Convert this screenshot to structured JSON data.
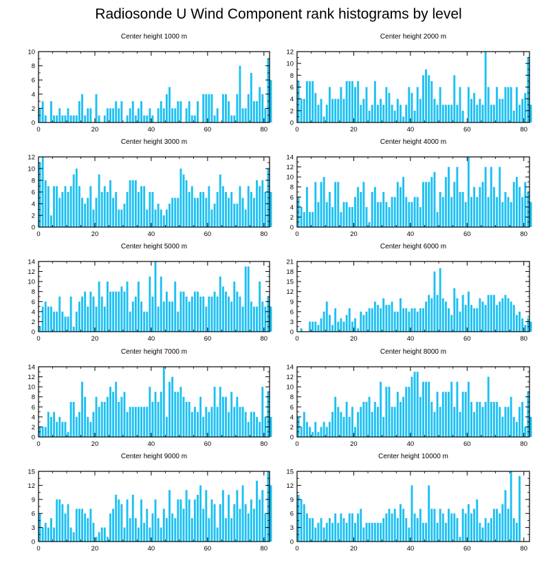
{
  "figure": {
    "title": "Radiosonde U Wind Component rank histograms by level",
    "bar_color": "#1ec0f2",
    "axis_color": "#000000"
  },
  "chart_data": [
    {
      "type": "bar",
      "title": "Center height 1000 m",
      "xlim": [
        0,
        82
      ],
      "ylim": [
        0,
        10
      ],
      "xticks": [
        0,
        20,
        40,
        60,
        80
      ],
      "yticks": [
        0,
        2,
        4,
        6,
        8,
        10
      ],
      "values": [
        2,
        3,
        1,
        0,
        3,
        1,
        1,
        2,
        1,
        1,
        2,
        1,
        1,
        1,
        3,
        4,
        1,
        2,
        2,
        0,
        4,
        1,
        0,
        1,
        2,
        2,
        2,
        3,
        2,
        3,
        0,
        1,
        2,
        3,
        1,
        2,
        3,
        1,
        1,
        2,
        1,
        0,
        2,
        3,
        2,
        4,
        5,
        2,
        2,
        3,
        3,
        0,
        2,
        3,
        1,
        1,
        3,
        0,
        4,
        4,
        4,
        4,
        1,
        2,
        0,
        4,
        4,
        3,
        1,
        1,
        4,
        8,
        2,
        2,
        4,
        7,
        3,
        3,
        5,
        4,
        2,
        9,
        6
      ]
    },
    {
      "type": "bar",
      "title": "Center height 2000 m",
      "xlim": [
        0,
        82
      ],
      "ylim": [
        0,
        12
      ],
      "xticks": [
        0,
        20,
        40,
        60,
        80
      ],
      "yticks": [
        0,
        2,
        4,
        6,
        8,
        10,
        12
      ],
      "values": [
        7,
        4,
        4,
        7,
        7,
        7,
        5,
        3,
        4,
        1,
        3,
        6,
        4,
        4,
        4,
        6,
        4,
        7,
        7,
        7,
        6,
        7,
        3,
        4,
        6,
        2,
        3,
        7,
        3,
        4,
        3,
        6,
        5,
        3,
        2,
        4,
        3,
        1,
        3,
        6,
        5,
        2,
        6,
        4,
        8,
        9,
        8,
        7,
        4,
        3,
        6,
        3,
        3,
        3,
        3,
        8,
        3,
        6,
        2,
        0,
        6,
        4,
        5,
        3,
        4,
        3,
        12,
        6,
        3,
        3,
        6,
        4,
        4,
        6,
        6,
        6,
        2,
        6,
        3,
        4,
        5,
        11,
        3
      ]
    },
    {
      "type": "bar",
      "title": "Center height 3000 m",
      "xlim": [
        0,
        82
      ],
      "ylim": [
        0,
        12
      ],
      "xticks": [
        0,
        20,
        40,
        60,
        80
      ],
      "yticks": [
        0,
        2,
        4,
        6,
        8,
        10,
        12
      ],
      "values": [
        11,
        12,
        8,
        7,
        2,
        7,
        7,
        5,
        6,
        7,
        6,
        7,
        9,
        10,
        7,
        5,
        4,
        5,
        7,
        3,
        5,
        9,
        6,
        7,
        6,
        8,
        5,
        6,
        3,
        3,
        4,
        6,
        8,
        8,
        8,
        6,
        7,
        7,
        3,
        6,
        6,
        3,
        4,
        3,
        2,
        3,
        4,
        5,
        5,
        5,
        10,
        9,
        8,
        6,
        7,
        5,
        5,
        6,
        6,
        5,
        7,
        3,
        4,
        6,
        9,
        7,
        6,
        5,
        6,
        4,
        4,
        7,
        5,
        3,
        7,
        6,
        5,
        8,
        7,
        8,
        6,
        10,
        6
      ]
    },
    {
      "type": "bar",
      "title": "Center height 4000 m",
      "xlim": [
        0,
        82
      ],
      "ylim": [
        0,
        14
      ],
      "xticks": [
        0,
        20,
        40,
        60,
        80
      ],
      "yticks": [
        0,
        2,
        4,
        6,
        8,
        10,
        12,
        14
      ],
      "values": [
        6,
        4,
        3,
        8,
        3,
        3,
        9,
        5,
        9,
        10,
        5,
        7,
        4,
        9,
        9,
        3,
        5,
        5,
        4,
        4,
        6,
        8,
        7,
        9,
        4,
        1,
        7,
        8,
        5,
        5,
        7,
        5,
        4,
        6,
        6,
        9,
        8,
        10,
        6,
        5,
        5,
        6,
        6,
        4,
        9,
        9,
        9,
        10,
        11,
        3,
        7,
        6,
        10,
        12,
        6,
        9,
        12,
        7,
        7,
        5,
        14,
        6,
        8,
        6,
        8,
        9,
        12,
        6,
        12,
        8,
        6,
        12,
        5,
        7,
        6,
        5,
        9,
        10,
        8,
        6,
        9,
        7,
        5
      ]
    },
    {
      "type": "bar",
      "title": "Center height 5000 m",
      "xlim": [
        0,
        82
      ],
      "ylim": [
        0,
        14
      ],
      "xticks": [
        0,
        20,
        40,
        60,
        80
      ],
      "yticks": [
        0,
        2,
        4,
        6,
        8,
        10,
        12,
        14
      ],
      "values": [
        1,
        5,
        6,
        5,
        5,
        4,
        4,
        7,
        4,
        3,
        3,
        7,
        1,
        4,
        6,
        7,
        8,
        5,
        8,
        7,
        5,
        10,
        7,
        5,
        10,
        8,
        8,
        8,
        8,
        9,
        8,
        10,
        4,
        6,
        7,
        10,
        6,
        4,
        4,
        11,
        7,
        14,
        5,
        11,
        6,
        8,
        6,
        6,
        10,
        4,
        8,
        8,
        7,
        6,
        7,
        8,
        8,
        7,
        7,
        5,
        7,
        7,
        8,
        7,
        11,
        9,
        8,
        7,
        6,
        10,
        8,
        7,
        5,
        13,
        13,
        6,
        5,
        5,
        10,
        6,
        5,
        7,
        5
      ]
    },
    {
      "type": "bar",
      "title": "Center height 6000 m",
      "xlim": [
        0,
        82
      ],
      "ylim": [
        0,
        21
      ],
      "xticks": [
        0,
        20,
        40,
        60,
        80
      ],
      "yticks": [
        0,
        3,
        6,
        9,
        12,
        15,
        18,
        21
      ],
      "values": [
        0,
        1,
        0,
        0,
        3,
        3,
        3,
        2,
        4,
        6,
        9,
        5,
        2,
        7,
        3,
        4,
        3,
        5,
        7,
        3,
        4,
        1,
        6,
        5,
        6,
        7,
        7,
        9,
        8,
        7,
        10,
        8,
        8,
        9,
        6,
        6,
        10,
        7,
        7,
        6,
        7,
        7,
        6,
        7,
        7,
        9,
        11,
        10,
        18,
        11,
        19,
        10,
        9,
        7,
        5,
        13,
        10,
        6,
        11,
        8,
        12,
        8,
        7,
        7,
        10,
        9,
        8,
        11,
        11,
        11,
        8,
        9,
        10,
        11,
        10,
        9,
        8,
        5,
        6,
        4,
        2,
        4,
        3
      ]
    },
    {
      "type": "bar",
      "title": "Center height 7000 m",
      "xlim": [
        0,
        82
      ],
      "ylim": [
        0,
        14
      ],
      "xticks": [
        0,
        20,
        40,
        60,
        80
      ],
      "yticks": [
        0,
        2,
        4,
        6,
        8,
        10,
        12,
        14
      ],
      "values": [
        2,
        2,
        2,
        5,
        4,
        5,
        3,
        4,
        3,
        3,
        1,
        7,
        7,
        4,
        5,
        11,
        8,
        4,
        3,
        5,
        8,
        6,
        7,
        7,
        8,
        10,
        9,
        11,
        7,
        8,
        9,
        5,
        6,
        6,
        6,
        6,
        6,
        6,
        6,
        10,
        7,
        9,
        7,
        9,
        14,
        4,
        11,
        12,
        9,
        9,
        10,
        8,
        7,
        7,
        5,
        6,
        5,
        8,
        4,
        6,
        5,
        6,
        10,
        6,
        10,
        8,
        8,
        5,
        9,
        6,
        8,
        6,
        6,
        5,
        3,
        5,
        5,
        4,
        3,
        10,
        4,
        9,
        4
      ]
    },
    {
      "type": "bar",
      "title": "Center height 8000 m",
      "xlim": [
        0,
        82
      ],
      "ylim": [
        0,
        14
      ],
      "xticks": [
        0,
        20,
        40,
        60,
        80
      ],
      "yticks": [
        0,
        2,
        4,
        6,
        8,
        10,
        12,
        14
      ],
      "values": [
        4,
        2,
        5,
        3,
        2,
        1,
        3,
        1,
        2,
        3,
        2,
        3,
        5,
        8,
        6,
        5,
        4,
        7,
        4,
        6,
        2,
        5,
        6,
        7,
        7,
        8,
        5,
        7,
        6,
        11,
        4,
        10,
        10,
        6,
        6,
        9,
        7,
        8,
        10,
        10,
        12,
        13,
        13,
        8,
        11,
        11,
        11,
        7,
        5,
        9,
        6,
        9,
        9,
        9,
        11,
        6,
        11,
        5,
        9,
        9,
        11,
        7,
        5,
        7,
        7,
        6,
        7,
        12,
        7,
        7,
        7,
        6,
        4,
        6,
        6,
        8,
        4,
        3,
        6,
        7,
        2,
        9,
        4
      ]
    },
    {
      "type": "bar",
      "title": "Center height 9000 m",
      "xlim": [
        0,
        82
      ],
      "ylim": [
        0,
        15
      ],
      "xticks": [
        0,
        20,
        40,
        60,
        80
      ],
      "yticks": [
        0,
        3,
        6,
        9,
        12,
        15
      ],
      "values": [
        6,
        3,
        4,
        3,
        5,
        3,
        9,
        9,
        8,
        6,
        8,
        3,
        2,
        7,
        7,
        7,
        6,
        5,
        7,
        4,
        1,
        2,
        3,
        3,
        1,
        6,
        7,
        10,
        9,
        8,
        3,
        9,
        5,
        10,
        5,
        3,
        9,
        4,
        7,
        3,
        6,
        9,
        5,
        3,
        7,
        5,
        11,
        6,
        5,
        9,
        9,
        7,
        11,
        9,
        5,
        9,
        10,
        12,
        7,
        11,
        5,
        9,
        8,
        3,
        8,
        11,
        5,
        10,
        5,
        8,
        11,
        7,
        12,
        8,
        6,
        9,
        7,
        13,
        9,
        11,
        6,
        15,
        12
      ]
    },
    {
      "type": "bar",
      "title": "Center height 10000 m",
      "xlim": [
        0,
        82
      ],
      "ylim": [
        0,
        15
      ],
      "xticks": [
        0,
        20,
        40,
        60,
        80
      ],
      "yticks": [
        0,
        3,
        6,
        9,
        12,
        15
      ],
      "values": [
        10,
        9,
        8,
        6,
        5,
        5,
        3,
        4,
        5,
        3,
        4,
        5,
        4,
        6,
        4,
        6,
        5,
        4,
        6,
        6,
        4,
        6,
        7,
        3,
        4,
        4,
        4,
        4,
        4,
        4,
        5,
        6,
        7,
        6,
        7,
        5,
        8,
        7,
        5,
        3,
        12,
        6,
        5,
        7,
        4,
        4,
        12,
        7,
        7,
        4,
        7,
        6,
        4,
        7,
        6,
        6,
        5,
        1,
        7,
        6,
        8,
        6,
        7,
        9,
        4,
        3,
        5,
        4,
        5,
        7,
        7,
        6,
        8,
        11,
        7,
        15,
        5,
        4,
        14
      ]
    }
  ]
}
